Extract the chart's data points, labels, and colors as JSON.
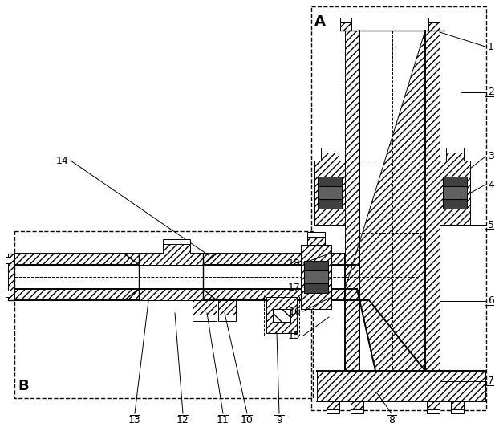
{
  "bg_color": "#ffffff",
  "line_color": "#000000",
  "label_A": "A",
  "label_B": "B",
  "label_I": "I",
  "fig_width": 6.17,
  "fig_height": 5.27,
  "dpi": 100,
  "right_labels": [
    [
      "1",
      605,
      58
    ],
    [
      "2",
      605,
      120
    ],
    [
      "3",
      605,
      195
    ],
    [
      "4",
      605,
      228
    ],
    [
      "5",
      605,
      285
    ],
    [
      "6",
      605,
      375
    ],
    [
      "7",
      605,
      475
    ]
  ],
  "bottom_labels": [
    [
      "8",
      488,
      510
    ],
    [
      "9",
      348,
      510
    ],
    [
      "10",
      308,
      510
    ],
    [
      "11",
      278,
      510
    ],
    [
      "12",
      228,
      510
    ],
    [
      "13",
      168,
      510
    ]
  ],
  "left_labels": [
    [
      "14",
      90,
      198
    ],
    [
      "15",
      378,
      415
    ],
    [
      "16",
      378,
      385
    ],
    [
      "17",
      378,
      355
    ],
    [
      "18",
      378,
      325
    ]
  ]
}
